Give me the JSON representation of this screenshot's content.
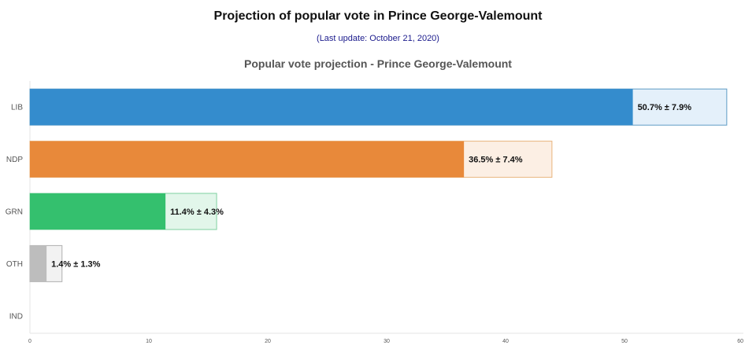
{
  "header": {
    "title": "Projection of popular vote in Prince George-Valemount",
    "subtitle": "(Last update: October 21, 2020)"
  },
  "chart_data": {
    "type": "bar",
    "orientation": "horizontal",
    "title": "Popular vote projection - Prince George-Valemount",
    "categories": [
      "LIB",
      "NDP",
      "GRN",
      "OTH",
      "IND"
    ],
    "values": [
      50.7,
      36.5,
      11.4,
      1.4,
      null
    ],
    "margins": [
      7.9,
      7.4,
      4.3,
      1.3,
      null
    ],
    "labels": [
      "50.7% ± 7.9%",
      "36.5% ± 7.4%",
      "11.4% ± 4.3%",
      "1.4% ± 1.3%",
      ""
    ],
    "colors": [
      "#348ccd",
      "#e8893a",
      "#34c06e",
      "#bdbdbd",
      "#cccccc"
    ],
    "range_fill_colors": [
      "#e4f0fa",
      "#fcefe4",
      "#e2f6ea",
      "#f2f2f2",
      "#f2f2f2"
    ],
    "range_stroke_colors": [
      "#5f9cc4",
      "#e8b47c",
      "#7fd0a0",
      "#b0b0b0",
      "#b0b0b0"
    ],
    "xlim": [
      0,
      60
    ],
    "xticks": [
      0,
      10,
      20,
      30,
      40,
      50,
      60
    ],
    "grid": false
  }
}
